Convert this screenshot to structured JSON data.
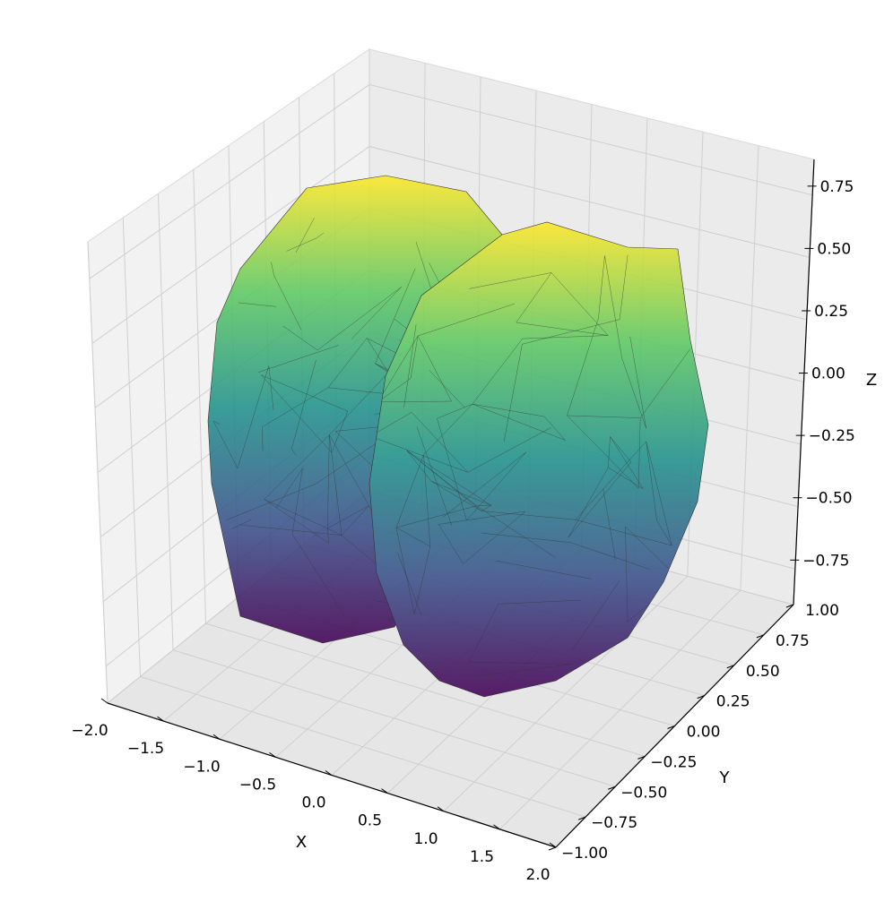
{
  "chart_data": {
    "type": "surface3d",
    "title": "",
    "xlabel": "X",
    "ylabel": "Y",
    "zlabel": "Z",
    "xlim": [
      -2.0,
      2.0
    ],
    "ylim": [
      -1.0,
      1.0
    ],
    "zlim": [
      -0.97,
      0.97
    ],
    "x_ticks": [
      "−2.0",
      "−1.5",
      "−1.0",
      "−0.5",
      "0.0",
      "0.5",
      "1.0",
      "1.5",
      "2.0"
    ],
    "y_ticks": [
      "−1.00",
      "−0.75",
      "−0.50",
      "−0.25",
      "0.00",
      "0.25",
      "0.50",
      "0.75",
      "1.00"
    ],
    "z_ticks": [
      "−0.75",
      "−0.50",
      "−0.25",
      "0.00",
      "0.25",
      "0.50",
      "0.75"
    ],
    "colormap": "viridis",
    "colormap_colors": [
      "#440154",
      "#3b528b",
      "#21918c",
      "#5ec962",
      "#fde725"
    ],
    "pane_color": "#f2f2f2",
    "grid": true,
    "surface": "two overlapping triangulated lobes (peanut shape) centered near x = -0.7 and x = 0.7, spanning y from -1 to 1, colored by z",
    "alpha": 0.8,
    "edge_color": "#000000"
  }
}
